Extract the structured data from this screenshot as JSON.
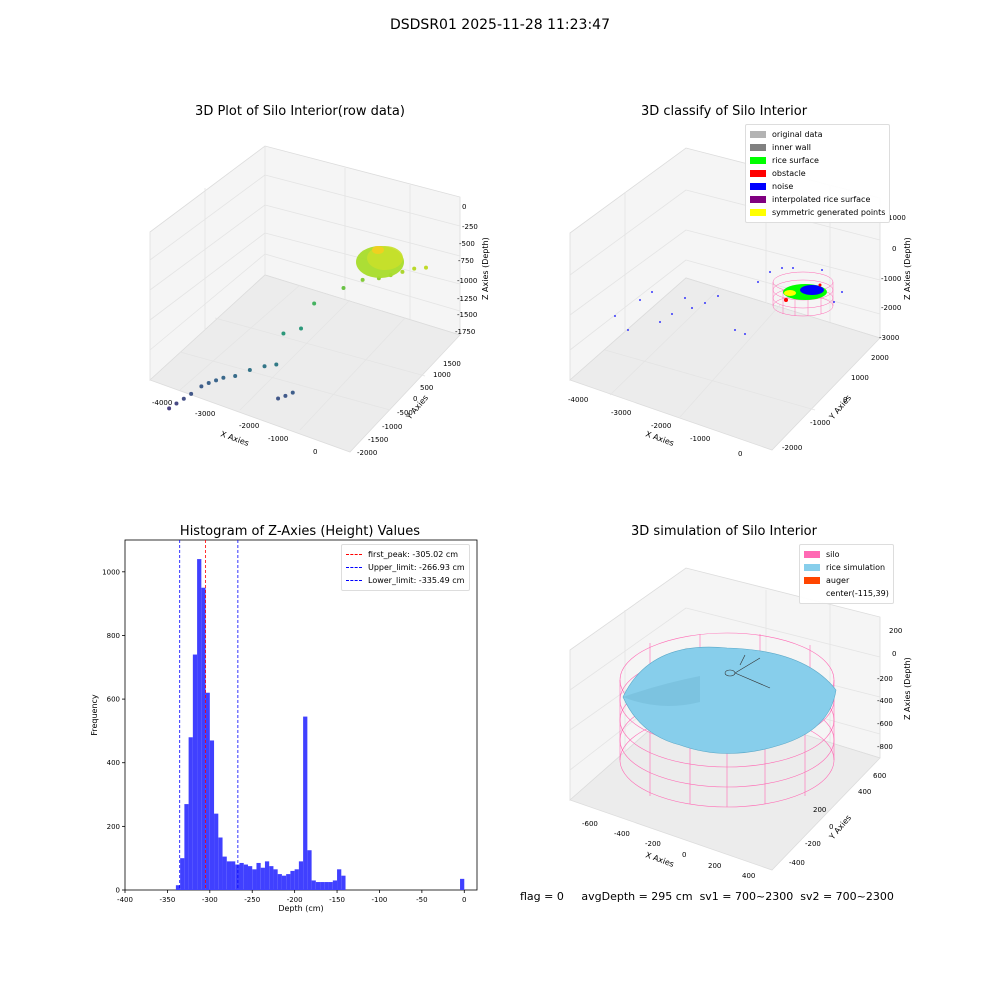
{
  "suptitle": "DSDSR01 2025-11-28 11:23:47",
  "footer": {
    "flag": "flag = 0",
    "avg_depth": "avgDepth = 295 cm",
    "sv1": "sv1 = 700~2300",
    "sv2": "sv2 = 700~2300"
  },
  "chart_data": [
    {
      "type": "scatter",
      "title": "3D Plot of Silo Interior(row data)",
      "xlabel": "X Axies",
      "ylabel": "Y Axies",
      "zlabel": "Z Axies (Depth)",
      "x_ticks": [
        "-4000",
        "-3000",
        "-2000",
        "-1000",
        "0"
      ],
      "y_ticks": [
        "-2000",
        "-1500",
        "-1000",
        "-500",
        "0",
        "500",
        "1000",
        "1500"
      ],
      "z_ticks": [
        "-1750",
        "-1500",
        "-1250",
        "-1000",
        "-750",
        "-500",
        "-250",
        "0"
      ],
      "points": [
        {
          "x": -3900,
          "y": -1800,
          "z": -1650
        },
        {
          "x": -3800,
          "y": -1700,
          "z": -1600
        },
        {
          "x": -3700,
          "y": -1600,
          "z": -1550
        },
        {
          "x": -3600,
          "y": -1500,
          "z": -1500
        },
        {
          "x": -3500,
          "y": -1300,
          "z": -1450
        },
        {
          "x": -3400,
          "y": -1200,
          "z": -1420
        },
        {
          "x": -3300,
          "y": -1100,
          "z": -1400
        },
        {
          "x": -3200,
          "y": -1000,
          "z": -1380
        },
        {
          "x": -3000,
          "y": -900,
          "z": -1350
        },
        {
          "x": -2800,
          "y": -700,
          "z": -1300
        },
        {
          "x": -2600,
          "y": -500,
          "z": -1280
        },
        {
          "x": -2400,
          "y": -400,
          "z": -1250
        },
        {
          "x": -2100,
          "y": -800,
          "z": -1500
        },
        {
          "x": -2000,
          "y": -700,
          "z": -1480
        },
        {
          "x": -1900,
          "y": -600,
          "z": -1450
        },
        {
          "x": -2500,
          "y": 0,
          "z": -1000
        },
        {
          "x": -2300,
          "y": 300,
          "z": -1000
        },
        {
          "x": -2200,
          "y": 600,
          "z": -750
        },
        {
          "x": -1800,
          "y": 1000,
          "z": -600
        },
        {
          "x": -1500,
          "y": 1200,
          "z": -500
        },
        {
          "x": -1200,
          "y": 1300,
          "z": -450
        },
        {
          "x": -1000,
          "y": 1400,
          "z": -400
        },
        {
          "x": -800,
          "y": 1500,
          "z": -350
        },
        {
          "x": -600,
          "y": 1600,
          "z": -300
        },
        {
          "x": -400,
          "y": 1700,
          "z": -280
        }
      ]
    },
    {
      "type": "scatter",
      "title": "3D classify of Silo Interior",
      "xlabel": "X Axies",
      "ylabel": "Y Axies",
      "zlabel": "Z Axies (Depth)",
      "x_ticks": [
        "-4000",
        "-3000",
        "-2000",
        "-1000",
        "0"
      ],
      "y_ticks": [
        "-2000",
        "-1000",
        "0",
        "1000",
        "2000"
      ],
      "z_ticks": [
        "-3000",
        "-2000",
        "-1000",
        "0",
        "1000"
      ],
      "legend": [
        {
          "label": "original data",
          "color": "#b3b3b3"
        },
        {
          "label": "inner wall",
          "color": "#808080"
        },
        {
          "label": "rice surface",
          "color": "#00ff00"
        },
        {
          "label": "obstacle",
          "color": "#ff0000"
        },
        {
          "label": "noise",
          "color": "#0000ff"
        },
        {
          "label": "interpolated rice surface",
          "color": "#800080"
        },
        {
          "label": "symmetric generated points",
          "color": "#ffff00"
        }
      ]
    },
    {
      "type": "bar",
      "title": "Histogram of Z-Axies (Height) Values",
      "xlabel": "Depth (cm)",
      "ylabel": "Frequency",
      "xlim": [
        -400,
        15
      ],
      "ylim": [
        0,
        1100
      ],
      "x_ticks": [
        "-400",
        "-350",
        "-300",
        "-250",
        "-200",
        "-150",
        "-100",
        "-50",
        "0"
      ],
      "y_ticks": [
        "0",
        "200",
        "400",
        "600",
        "800",
        "1000"
      ],
      "bin_width": 5,
      "bins": [
        {
          "x": -340,
          "v": 15
        },
        {
          "x": -335,
          "v": 100
        },
        {
          "x": -330,
          "v": 270
        },
        {
          "x": -325,
          "v": 480
        },
        {
          "x": -320,
          "v": 740
        },
        {
          "x": -315,
          "v": 1040
        },
        {
          "x": -310,
          "v": 950
        },
        {
          "x": -305,
          "v": 620
        },
        {
          "x": -300,
          "v": 470
        },
        {
          "x": -295,
          "v": 240
        },
        {
          "x": -290,
          "v": 165
        },
        {
          "x": -285,
          "v": 105
        },
        {
          "x": -280,
          "v": 90
        },
        {
          "x": -275,
          "v": 90
        },
        {
          "x": -270,
          "v": 80
        },
        {
          "x": -265,
          "v": 85
        },
        {
          "x": -260,
          "v": 80
        },
        {
          "x": -255,
          "v": 75
        },
        {
          "x": -250,
          "v": 65
        },
        {
          "x": -245,
          "v": 85
        },
        {
          "x": -240,
          "v": 70
        },
        {
          "x": -235,
          "v": 90
        },
        {
          "x": -230,
          "v": 75
        },
        {
          "x": -225,
          "v": 65
        },
        {
          "x": -220,
          "v": 50
        },
        {
          "x": -215,
          "v": 45
        },
        {
          "x": -210,
          "v": 50
        },
        {
          "x": -205,
          "v": 60
        },
        {
          "x": -200,
          "v": 65
        },
        {
          "x": -195,
          "v": 90
        },
        {
          "x": -190,
          "v": 545
        },
        {
          "x": -185,
          "v": 125
        },
        {
          "x": -180,
          "v": 30
        },
        {
          "x": -175,
          "v": 25
        },
        {
          "x": -170,
          "v": 25
        },
        {
          "x": -165,
          "v": 25
        },
        {
          "x": -160,
          "v": 25
        },
        {
          "x": -155,
          "v": 30
        },
        {
          "x": -150,
          "v": 65
        },
        {
          "x": -145,
          "v": 45
        },
        {
          "x": -5,
          "v": 35
        }
      ],
      "vlines": [
        {
          "label": "first_peak: -305.02 cm",
          "x": -305.02,
          "color": "#ff0000"
        },
        {
          "label": "Upper_limit: -266.93 cm",
          "x": -266.93,
          "color": "#0000ff"
        },
        {
          "label": "Lower_limit: -335.49 cm",
          "x": -335.49,
          "color": "#0000ff"
        }
      ]
    },
    {
      "type": "scatter",
      "title": "3D simulation of Silo Interior",
      "xlabel": "X Axies",
      "ylabel": "Y Axies",
      "zlabel": "Z Axies (Depth)",
      "x_ticks": [
        "-600",
        "-400",
        "-200",
        "0",
        "200",
        "400"
      ],
      "y_ticks": [
        "-400",
        "-200",
        "0",
        "200",
        "400",
        "600"
      ],
      "z_ticks": [
        "-800",
        "-600",
        "-400",
        "-200",
        "0",
        "200"
      ],
      "legend": [
        {
          "label": "silo",
          "color": "#ff69b4"
        },
        {
          "label": "rice simulation",
          "color": "#87ceeb"
        },
        {
          "label": "auger",
          "color": "#ff4500"
        },
        {
          "label": "center(-115,39)",
          "color": ""
        }
      ]
    }
  ]
}
